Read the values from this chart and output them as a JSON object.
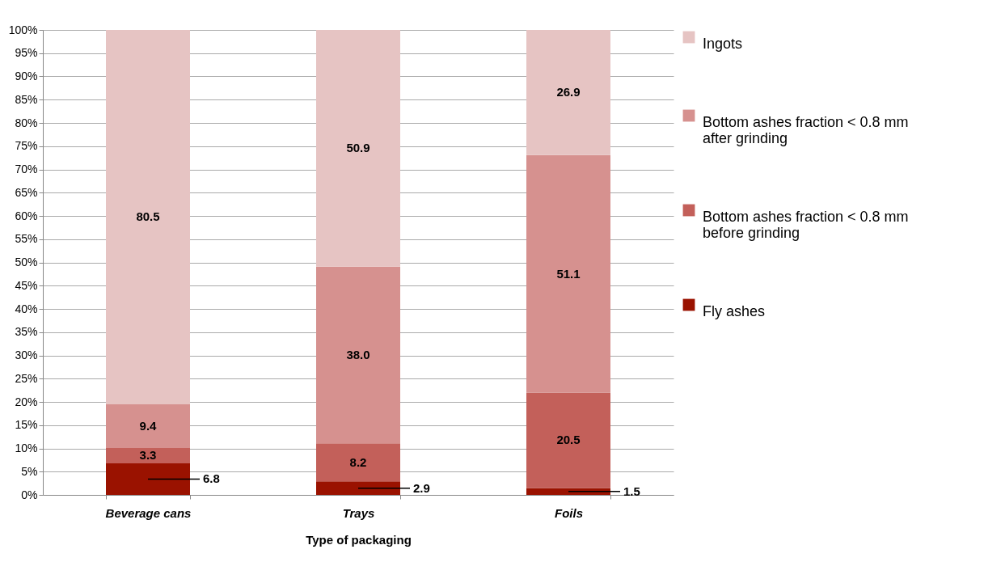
{
  "chart_data": {
    "type": "bar",
    "stacked": true,
    "xlabel": "Type of packaging",
    "categories": [
      "Beverage cans",
      "Trays",
      "Foils"
    ],
    "series": [
      {
        "name": "Fly ashes",
        "color": "#9a1200",
        "values": [
          6.8,
          2.9,
          1.5
        ],
        "value_labels": [
          "6.8",
          "2.9",
          "1.5"
        ]
      },
      {
        "name": "Bottom ashes fraction < 0.8 mm before grinding",
        "color": "#c3605a",
        "values": [
          3.3,
          8.2,
          20.5
        ],
        "value_labels": [
          "3.3",
          "8.2",
          "20.5"
        ]
      },
      {
        "name": "Bottom ashes fraction < 0.8 mm after grinding",
        "color": "#d6918f",
        "values": [
          9.4,
          38.0,
          51.1
        ],
        "value_labels": [
          "9.4",
          "38.0",
          "51.1"
        ]
      },
      {
        "name": "Ingots",
        "color": "#e6c4c3",
        "values": [
          80.5,
          50.9,
          26.9
        ],
        "value_labels": [
          "80.5",
          "50.9",
          "26.9"
        ]
      }
    ],
    "ylim": [
      0,
      100
    ],
    "yticks": [
      {
        "value": 0,
        "label": "0%"
      },
      {
        "value": 5,
        "label": "5%"
      },
      {
        "value": 10,
        "label": "10%"
      },
      {
        "value": 15,
        "label": "15%"
      },
      {
        "value": 20,
        "label": "20%"
      },
      {
        "value": 25,
        "label": "25%"
      },
      {
        "value": 30,
        "label": "30%"
      },
      {
        "value": 35,
        "label": "35%"
      },
      {
        "value": 40,
        "label": "40%"
      },
      {
        "value": 45,
        "label": "45%"
      },
      {
        "value": 50,
        "label": "50%"
      },
      {
        "value": 55,
        "label": "55%"
      },
      {
        "value": 60,
        "label": "60%"
      },
      {
        "value": 65,
        "label": "65%"
      },
      {
        "value": 70,
        "label": "70%"
      },
      {
        "value": 75,
        "label": "75%"
      },
      {
        "value": 80,
        "label": "80%"
      },
      {
        "value": 85,
        "label": "85%"
      },
      {
        "value": 90,
        "label": "90%"
      },
      {
        "value": 95,
        "label": "95%"
      },
      {
        "value": 100,
        "label": "100%"
      }
    ],
    "grid": "y",
    "legend": "right"
  }
}
